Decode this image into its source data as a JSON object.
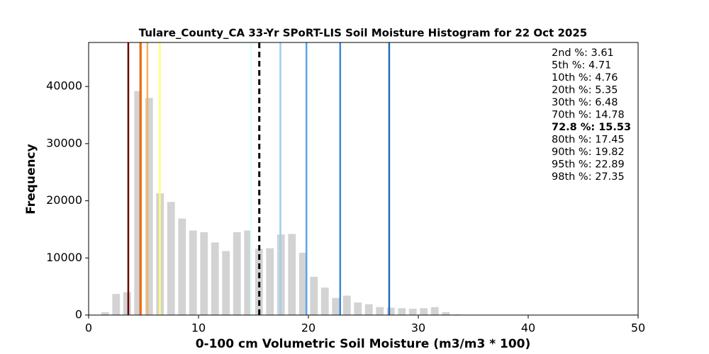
{
  "chart_data": {
    "type": "histogram",
    "title": "Tulare_County_CA 33-Yr SPoRT-LIS Soil Moisture Histogram for 22 Oct 2025",
    "x_label": "0-100 cm Volumetric Soil Moisture (m3/m3 * 100)",
    "y_label": "Frequency",
    "bins": [
      1,
      2,
      3,
      4,
      5,
      6,
      7,
      8,
      9,
      10,
      11,
      12,
      13,
      14,
      15,
      16,
      17,
      18,
      19,
      20,
      21,
      22,
      23,
      24,
      25,
      26,
      27,
      28,
      29,
      30,
      31,
      32,
      33,
      34
    ],
    "values": [
      500,
      3700,
      4000,
      39200,
      38000,
      21300,
      19800,
      16900,
      14800,
      14500,
      12700,
      11200,
      14500,
      14800,
      11600,
      11700,
      14100,
      14200,
      10900,
      6700,
      4800,
      3000,
      3400,
      2200,
      1900,
      1400,
      1300,
      1200,
      1100,
      1200,
      1400,
      500,
      100
    ],
    "color": "#d3d3d3",
    "xlim": [
      0,
      50
    ],
    "xticks": [
      0,
      10,
      20,
      30,
      40,
      50
    ],
    "ylim": [
      0,
      47700
    ],
    "yticks": [
      0,
      10000,
      20000,
      30000,
      40000
    ],
    "lines": [
      {
        "label": "2nd %: 3.61",
        "value": 3.61,
        "color": "#6b0000",
        "text_color": "#5a0000"
      },
      {
        "label": "5th %: 4.71",
        "value": 4.71,
        "color": "#d83a10",
        "text_color": "#a80000"
      },
      {
        "label": "10th %: 4.76",
        "value": 4.76,
        "color": "#f07a10",
        "text_color": "#b05800"
      },
      {
        "label": "20th %: 5.35",
        "value": 5.35,
        "color": "#f5b060",
        "text_color": "#9a6010"
      },
      {
        "label": "30th %: 6.48",
        "value": 6.48,
        "color": "#ffff70",
        "text_color": "#8a8a10"
      },
      {
        "label": "70th %: 14.78",
        "value": 14.78,
        "color": "#e0ffff",
        "text_color": "#203040"
      },
      {
        "label": "72.8 %: 15.53",
        "value": 15.53,
        "color": "#000000",
        "text_color": "#000000",
        "dashed": true
      },
      {
        "label": "80th %: 17.45",
        "value": 17.45,
        "color": "#9ccff0",
        "text_color": "#3a75a5"
      },
      {
        "label": "90th %: 19.82",
        "value": 19.82,
        "color": "#5aa5e5",
        "text_color": "#2060a5"
      },
      {
        "label": "95th %: 22.89",
        "value": 22.89,
        "color": "#3a8ad8",
        "text_color": "#1a559d"
      },
      {
        "label": "98th %: 27.35",
        "value": 27.35,
        "color": "#1f6cc0",
        "text_color": "#154590"
      }
    ]
  }
}
